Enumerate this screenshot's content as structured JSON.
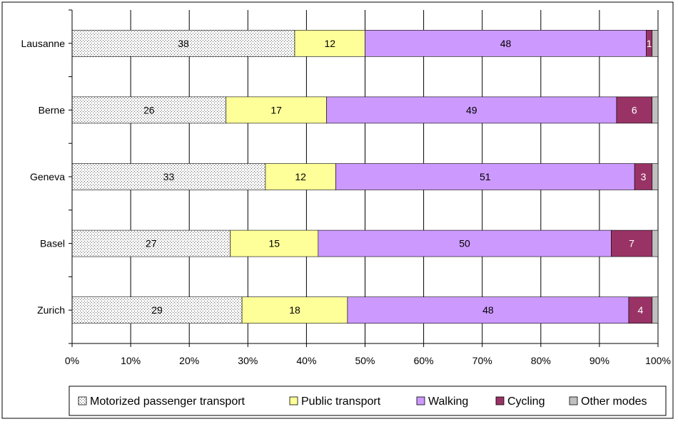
{
  "chart_data": {
    "type": "bar",
    "orientation": "horizontal",
    "stacked": true,
    "percent_stacked": true,
    "categories": [
      "Lausanne",
      "Berne",
      "Geneva",
      "Basel",
      "Zurich"
    ],
    "series": [
      {
        "name": "Motorized passenger transport",
        "values": [
          38,
          26,
          33,
          27,
          29
        ],
        "color": "#ffffff",
        "pattern": "dots"
      },
      {
        "name": "Public transport",
        "values": [
          12,
          17,
          12,
          15,
          18
        ],
        "color": "#ffff99"
      },
      {
        "name": "Walking",
        "values": [
          48,
          49,
          51,
          50,
          48
        ],
        "color": "#cc99ff"
      },
      {
        "name": "Cycling",
        "values": [
          1,
          6,
          3,
          7,
          4
        ],
        "color": "#993366"
      },
      {
        "name": "Other modes",
        "values": [
          1,
          1,
          1,
          1,
          1
        ],
        "color": "#c0c0c0"
      }
    ],
    "data_labels": {
      "Motorized passenger transport": [
        "38",
        "26",
        "33",
        "27",
        "29"
      ],
      "Public transport": [
        "12",
        "17",
        "12",
        "15",
        "18"
      ],
      "Walking": [
        "48",
        "49",
        "51",
        "50",
        "48"
      ],
      "Cycling": [
        "1",
        "6",
        "3",
        "7",
        "4"
      ],
      "Other modes": [
        "",
        "",
        "",
        "",
        ""
      ]
    },
    "x_ticks": [
      "0%",
      "10%",
      "20%",
      "30%",
      "40%",
      "50%",
      "60%",
      "70%",
      "80%",
      "90%",
      "100%"
    ],
    "xlim": [
      0,
      100
    ],
    "grid": "vertical",
    "legend_position": "bottom",
    "title": "",
    "xlabel": "",
    "ylabel": ""
  }
}
